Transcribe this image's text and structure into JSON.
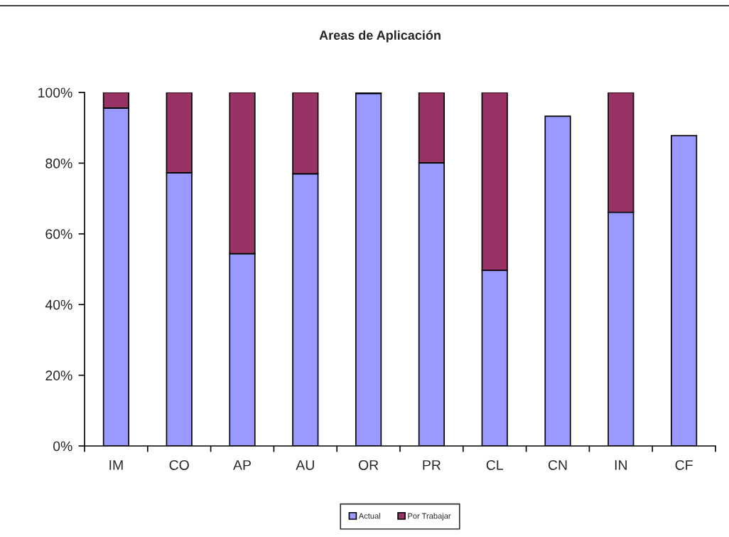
{
  "chart_data": {
    "type": "bar",
    "title": "Areas de Aplicación",
    "stacked": true,
    "legend": "bottom",
    "categories": [
      "IM",
      "CO",
      "AP",
      "AU",
      "OR",
      "PR",
      "CL",
      "CN",
      "IN",
      "CF"
    ],
    "series": [
      {
        "name": "Actual",
        "color": "#9999ff",
        "values": [
          95.6,
          77.3,
          54.4,
          77.0,
          99.7,
          80.1,
          49.7,
          93.3,
          66.1,
          87.8
        ]
      },
      {
        "name": "Por Trabajar",
        "color": "#993366",
        "values": [
          4.4,
          22.7,
          45.6,
          23.0,
          0.3,
          19.9,
          50.3,
          null,
          33.9,
          null
        ]
      }
    ],
    "ylim": [
      0,
      100
    ],
    "yticks": [
      {
        "value": 0,
        "label": "0%"
      },
      {
        "value": 20,
        "label": "20%"
      },
      {
        "value": 40,
        "label": "40%"
      },
      {
        "value": 60,
        "label": "60%"
      },
      {
        "value": 80,
        "label": "80%"
      },
      {
        "value": 100,
        "label": "100%"
      }
    ]
  }
}
